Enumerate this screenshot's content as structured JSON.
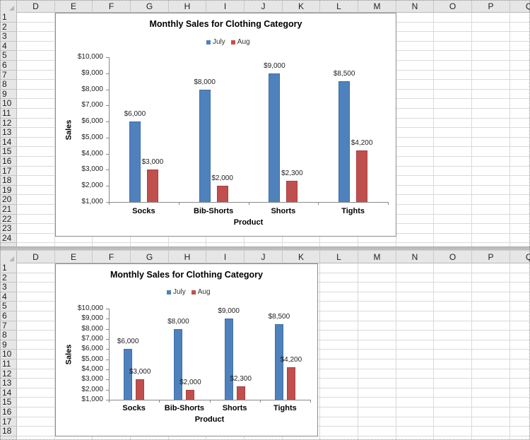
{
  "spreadsheet": {
    "columns": [
      "D",
      "E",
      "F",
      "G",
      "H",
      "I",
      "J",
      "K",
      "L",
      "M",
      "N",
      "O",
      "P",
      "Q"
    ],
    "top_pane": {
      "rows": [
        "1",
        "2",
        "3",
        "4",
        "5",
        "6",
        "7",
        "8",
        "9",
        "10",
        "11",
        "12",
        "13",
        "14",
        "15",
        "16",
        "17",
        "18",
        "19",
        "20",
        "21",
        "22",
        "23",
        "24"
      ]
    },
    "bottom_pane": {
      "rows": [
        "1",
        "2",
        "3",
        "4",
        "5",
        "6",
        "7",
        "8",
        "9",
        "10",
        "11",
        "12",
        "13",
        "14",
        "15",
        "16",
        "17",
        "18"
      ]
    }
  },
  "charts": {
    "top": {
      "title": "Monthly Sales for Clothing Category",
      "legend": [
        "July",
        "Aug"
      ],
      "y_axis_title": "Sales",
      "x_axis_title": "Product",
      "y_ticks": [
        "$10,000",
        "$9,000",
        "$8,000",
        "$7,000",
        "$6,000",
        "$5,000",
        "$4,000",
        "$3,000",
        "$2,000",
        "$1,000"
      ],
      "categories": [
        "Socks",
        "Bib-Shorts",
        "Shorts",
        "Tights"
      ],
      "july_labels": [
        "$6,000",
        "$8,000",
        "$9,000",
        "$8,500"
      ],
      "aug_labels": [
        "$3,000",
        "$2,000",
        "$2,300",
        "$4,200"
      ]
    },
    "bottom": {
      "title": "Monthly Sales for Clothing Category",
      "legend": [
        "July",
        "Aug"
      ],
      "y_axis_title": "Sales",
      "x_axis_title": "Product",
      "y_ticks": [
        "$10,000",
        "$9,000",
        "$8,000",
        "$7,000",
        "$6,000",
        "$5,000",
        "$4,000",
        "$3,000",
        "$2,000",
        "$1,000"
      ],
      "categories": [
        "Socks",
        "Bib-Shorts",
        "Shorts",
        "Tights"
      ],
      "july_labels": [
        "$6,000",
        "$8,000",
        "$9,000",
        "$8,500"
      ],
      "aug_labels": [
        "$3,000",
        "$2,000",
        "$2,300",
        "$4,200"
      ]
    }
  },
  "colors": {
    "july": "#4f81bd",
    "aug": "#c0504d"
  },
  "chart_data": [
    {
      "type": "bar",
      "title": "Monthly Sales for Clothing Category",
      "xlabel": "Product",
      "ylabel": "Sales",
      "categories": [
        "Socks",
        "Bib-Shorts",
        "Shorts",
        "Tights"
      ],
      "series": [
        {
          "name": "July",
          "values": [
            6000,
            8000,
            9000,
            8500
          ],
          "color": "#4f81bd"
        },
        {
          "name": "Aug",
          "values": [
            3000,
            2000,
            2300,
            4200
          ],
          "color": "#c0504d"
        }
      ],
      "ylim": [
        1000,
        10000
      ],
      "y_tick_step": 1000,
      "legend_position": "top",
      "grid": false,
      "data_labels": true
    },
    {
      "type": "bar",
      "title": "Monthly Sales for Clothing Category",
      "xlabel": "Product",
      "ylabel": "Sales",
      "categories": [
        "Socks",
        "Bib-Shorts",
        "Shorts",
        "Tights"
      ],
      "series": [
        {
          "name": "July",
          "values": [
            6000,
            8000,
            9000,
            8500
          ],
          "color": "#4f81bd"
        },
        {
          "name": "Aug",
          "values": [
            3000,
            2000,
            2300,
            4200
          ],
          "color": "#c0504d"
        }
      ],
      "ylim": [
        1000,
        10000
      ],
      "y_tick_step": 1000,
      "legend_position": "top",
      "grid": false,
      "data_labels": true
    }
  ]
}
